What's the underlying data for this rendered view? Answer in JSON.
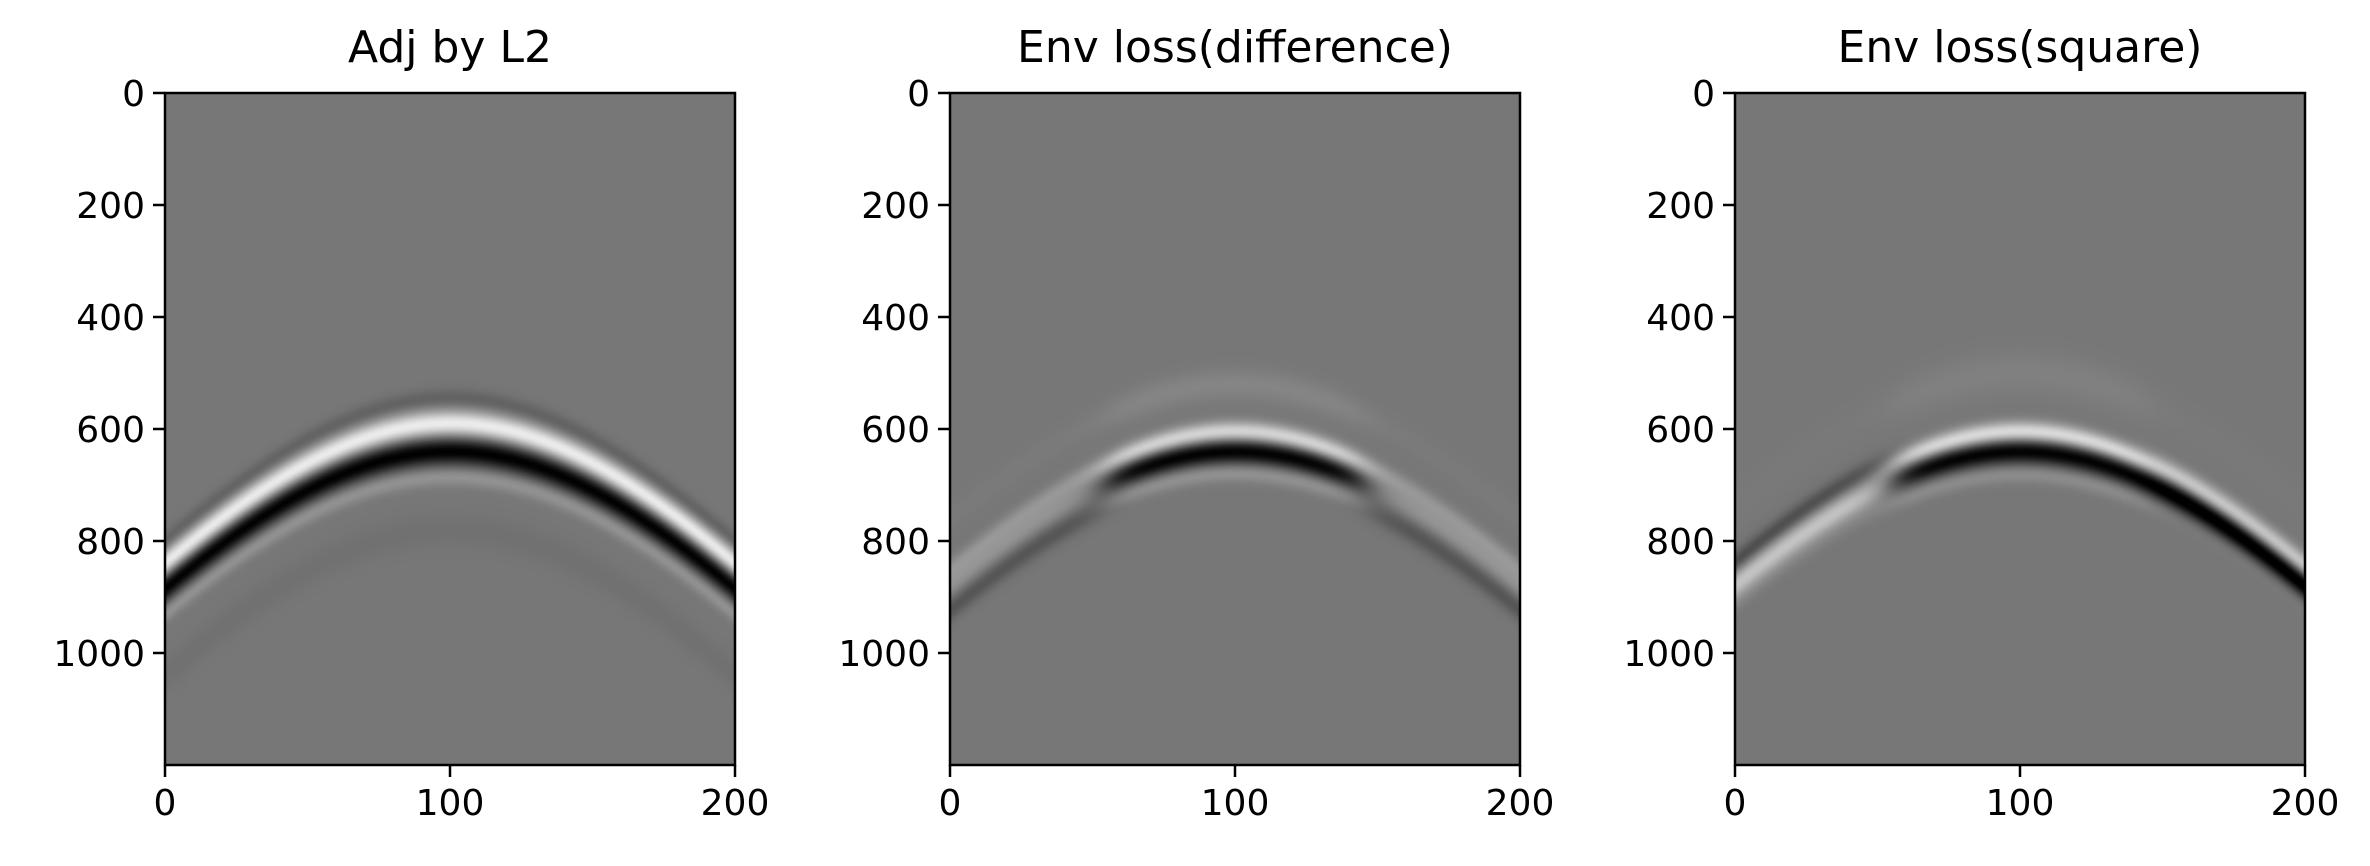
{
  "colors": {
    "background": "#ffffff",
    "axes": "#000000",
    "neutral_gray": "#777777",
    "colormap": "gray (black = negative, white = positive)"
  },
  "chart_data": [
    {
      "type": "heatmap",
      "title": "Adj by L2",
      "xlabel": "",
      "ylabel": "",
      "xlim": [
        0,
        200
      ],
      "ylim": [
        1200,
        0
      ],
      "xticks": [
        0,
        100,
        200
      ],
      "xticklabels": [
        "0",
        "100",
        "200"
      ],
      "yticks": [
        0,
        200,
        400,
        600,
        800,
        1000
      ],
      "yticklabels": [
        "0",
        "200",
        "400",
        "600",
        "800",
        "1000"
      ],
      "grid": false,
      "legend": "none",
      "pattern": "hyperbolic event, apex at trace 100 near sample 620, edges near sample 880",
      "bands": [
        {
          "apex": 545,
          "edge": 800,
          "width": 16,
          "amp": -0.18
        },
        {
          "apex": 590,
          "edge": 840,
          "width": 22,
          "amp": 1.0
        },
        {
          "apex": 640,
          "edge": 885,
          "width": 24,
          "amp": -1.0
        },
        {
          "apex": 685,
          "edge": 930,
          "width": 16,
          "amp": 0.25
        },
        {
          "apex": 780,
          "edge": 1040,
          "width": 30,
          "amp": -0.05
        }
      ]
    },
    {
      "type": "heatmap",
      "title": "Env loss(difference)",
      "xlabel": "",
      "ylabel": "",
      "xlim": [
        0,
        200
      ],
      "ylim": [
        1200,
        0
      ],
      "xticks": [
        0,
        100,
        200
      ],
      "xticklabels": [
        "0",
        "100",
        "200"
      ],
      "yticks": [
        0,
        200,
        400,
        600,
        800,
        1000
      ],
      "yticklabels": [
        "0",
        "200",
        "400",
        "600",
        "800",
        "1000"
      ],
      "grid": false,
      "legend": "none",
      "pattern": "strong dark event at apex (trace 55-145), weaker white/dark flanks",
      "bands": [
        {
          "apex": 520,
          "edge": 760,
          "width": 28,
          "amp": 0.12
        },
        {
          "apex": 605,
          "edge": 850,
          "width": 18,
          "amp": 0.85
        },
        {
          "apex": 640,
          "edge": 880,
          "width": 22,
          "amp": -1.0
        },
        {
          "apex": 678,
          "edge": 915,
          "width": 16,
          "amp": 0.25
        }
      ],
      "apex_window": [
        55,
        145
      ],
      "flank": {
        "white_amp": 0.55,
        "dark_amp": -0.35
      }
    },
    {
      "type": "heatmap",
      "title": "Env loss(square)",
      "xlabel": "",
      "ylabel": "",
      "xlim": [
        0,
        200
      ],
      "ylim": [
        1200,
        0
      ],
      "xticks": [
        0,
        100,
        200
      ],
      "xticklabels": [
        "0",
        "100",
        "200"
      ],
      "yticks": [
        0,
        200,
        400,
        600,
        800,
        1000
      ],
      "yticklabels": [
        "0",
        "200",
        "400",
        "600",
        "800",
        "1000"
      ],
      "grid": false,
      "legend": "none",
      "pattern": "dark event at apex, polarity flip on flanks (left white, right dark)",
      "bands": [
        {
          "apex": 500,
          "edge": 740,
          "width": 40,
          "amp": 0.08
        },
        {
          "apex": 605,
          "edge": 850,
          "width": 18,
          "amp": 0.9
        },
        {
          "apex": 640,
          "edge": 880,
          "width": 22,
          "amp": -1.0
        },
        {
          "apex": 680,
          "edge": 915,
          "width": 16,
          "amp": 0.2
        }
      ],
      "apex_window": [
        55,
        145
      ],
      "flank": {
        "left_amp": 0.9,
        "right_amp": -0.9
      }
    }
  ]
}
